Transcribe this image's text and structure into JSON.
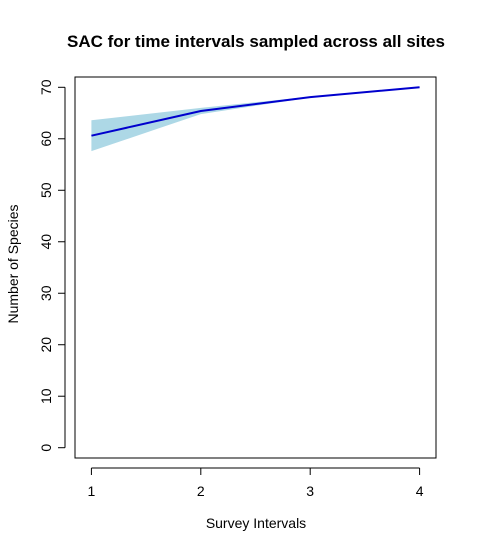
{
  "chart_data": {
    "type": "line",
    "title": "SAC for time intervals sampled across all sites",
    "xlabel": "Survey Intervals",
    "ylabel": "Number of Species",
    "x": [
      1,
      2,
      3,
      4
    ],
    "xticks": [
      "1",
      "2",
      "3",
      "4"
    ],
    "yticks": [
      "0",
      "10",
      "20",
      "30",
      "40",
      "50",
      "60",
      "70"
    ],
    "xlim": [
      0.85,
      4.15
    ],
    "ylim": [
      -2,
      72
    ],
    "series": [
      {
        "values": [
          60.6,
          65.4,
          68.1,
          70.0
        ],
        "lower": [
          57.6,
          64.8,
          68.0,
          70.0
        ],
        "upper": [
          63.6,
          66.0,
          68.2,
          70.0
        ],
        "line_color": "#0000cd",
        "band_color": "#add8e6"
      }
    ],
    "grid": false,
    "legend": "none"
  }
}
